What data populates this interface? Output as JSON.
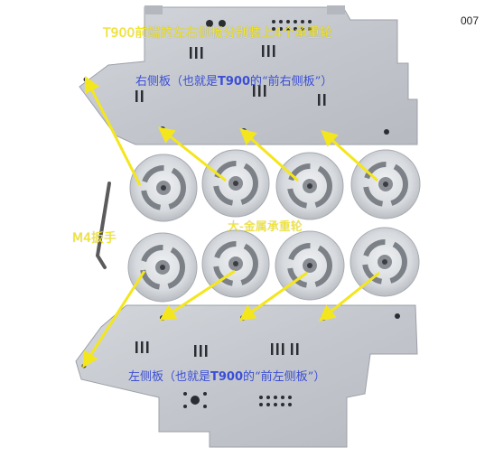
{
  "page_number": "007",
  "title": "T900前端的左右侧板分别装上4个承重轮",
  "right_panel_label": {
    "prefix": "右侧板（也就是",
    "model": "T900",
    "suffix": "的“前右侧板”）"
  },
  "left_panel_label": {
    "prefix": "左侧板（也就是",
    "model": "T900",
    "suffix": "的“前左侧板”）"
  },
  "wheels_label": "大-金属承重轮",
  "wrench_label": "M4扳手",
  "colors": {
    "annotation_yellow": "#f4e61c",
    "annotation_blue": "#3b4ed6",
    "panel_silver": "#c9cdd3",
    "background": "#ffffff"
  }
}
